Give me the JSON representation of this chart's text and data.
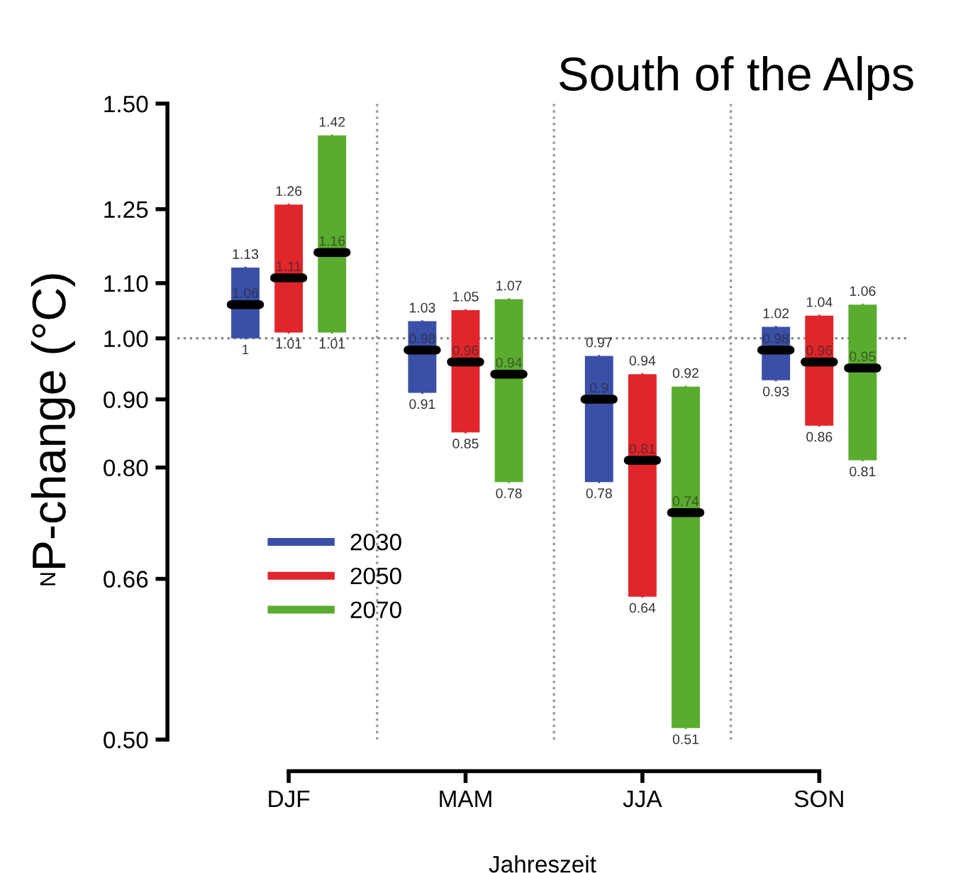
{
  "chart_data": {
    "type": "box",
    "title": "South of the Alps",
    "xlabel": "Jahreszeit",
    "ylabel": "P-change (°C)",
    "annotations": [
      "N"
    ],
    "categories": [
      "DJF",
      "MAM",
      "JJA",
      "SON"
    ],
    "log": true,
    "ylim": [
      0.5,
      1.5
    ],
    "yticks": [
      {
        "value": 0.5,
        "label": "0.50"
      },
      {
        "value": 0.66,
        "label": "0.66"
      },
      {
        "value": 0.8,
        "label": "0.80"
      },
      {
        "value": 0.9,
        "label": "0.90"
      },
      {
        "value": 1.0,
        "label": "1.00"
      },
      {
        "value": 1.1,
        "label": "1.10"
      },
      {
        "value": 1.25,
        "label": "1.25"
      },
      {
        "value": 1.5,
        "label": "1.50"
      }
    ],
    "grid": false,
    "legend": "bottom left",
    "ref_lines": [
      {
        "axis": "y",
        "value": 1,
        "line_style": "dotted",
        "color": "#888888"
      }
    ],
    "series": [
      {
        "name": "2030",
        "color": "#3a4fa6",
        "boxes": [
          {
            "low": 1,
            "q1": 1,
            "median": 1.06,
            "q3": 1.13,
            "high": 1.13
          },
          {
            "low": 0.91,
            "q1": 0.91,
            "median": 0.98,
            "q3": 1.03,
            "high": 1.03
          },
          {
            "low": 0.78,
            "q1": 0.78,
            "median": 0.9,
            "q3": 0.97,
            "high": 0.97
          },
          {
            "low": 0.93,
            "q1": 0.93,
            "median": 0.98,
            "q3": 1.02,
            "high": 1.02
          }
        ],
        "value_labels": [
          [
            "1.13",
            "1.06",
            "1"
          ],
          [
            "1.03",
            "0.98",
            "0.91"
          ],
          [
            "0.97",
            "0.9",
            "0.78"
          ],
          [
            "1.02",
            "0.98",
            "0.93"
          ]
        ]
      },
      {
        "name": "2050",
        "color": "#e0262b",
        "boxes": [
          {
            "low": 1.01,
            "q1": 1.01,
            "median": 1.11,
            "q3": 1.26,
            "high": 1.26
          },
          {
            "low": 0.85,
            "q1": 0.85,
            "median": 0.96,
            "q3": 1.05,
            "high": 1.05
          },
          {
            "low": 0.64,
            "q1": 0.64,
            "median": 0.81,
            "q3": 0.94,
            "high": 0.94
          },
          {
            "low": 0.86,
            "q1": 0.86,
            "median": 0.96,
            "q3": 1.04,
            "high": 1.04
          }
        ],
        "value_labels": [
          [
            "1.26",
            "1.11",
            "1.01"
          ],
          [
            "1.05",
            "0.96",
            "0.85"
          ],
          [
            "0.94",
            "0.81",
            "0.64"
          ],
          [
            "1.04",
            "0.96",
            "0.86"
          ]
        ]
      },
      {
        "name": "2070",
        "color": "#5aac2e",
        "boxes": [
          {
            "low": 1.01,
            "q1": 1.01,
            "median": 1.16,
            "q3": 1.42,
            "high": 1.42
          },
          {
            "low": 0.78,
            "q1": 0.78,
            "median": 0.94,
            "q3": 1.07,
            "high": 1.07
          },
          {
            "low": 0.51,
            "q1": 0.51,
            "median": 0.74,
            "q3": 0.92,
            "high": 0.92
          },
          {
            "low": 0.81,
            "q1": 0.81,
            "median": 0.95,
            "q3": 1.06,
            "high": 1.06
          }
        ],
        "value_labels": [
          [
            "1.42",
            "1.16",
            "1.01"
          ],
          [
            "1.07",
            "0.94",
            "0.78"
          ],
          [
            "0.92",
            "0.74",
            "0.51"
          ],
          [
            "1.06",
            "0.95",
            "0.81"
          ]
        ]
      }
    ]
  }
}
